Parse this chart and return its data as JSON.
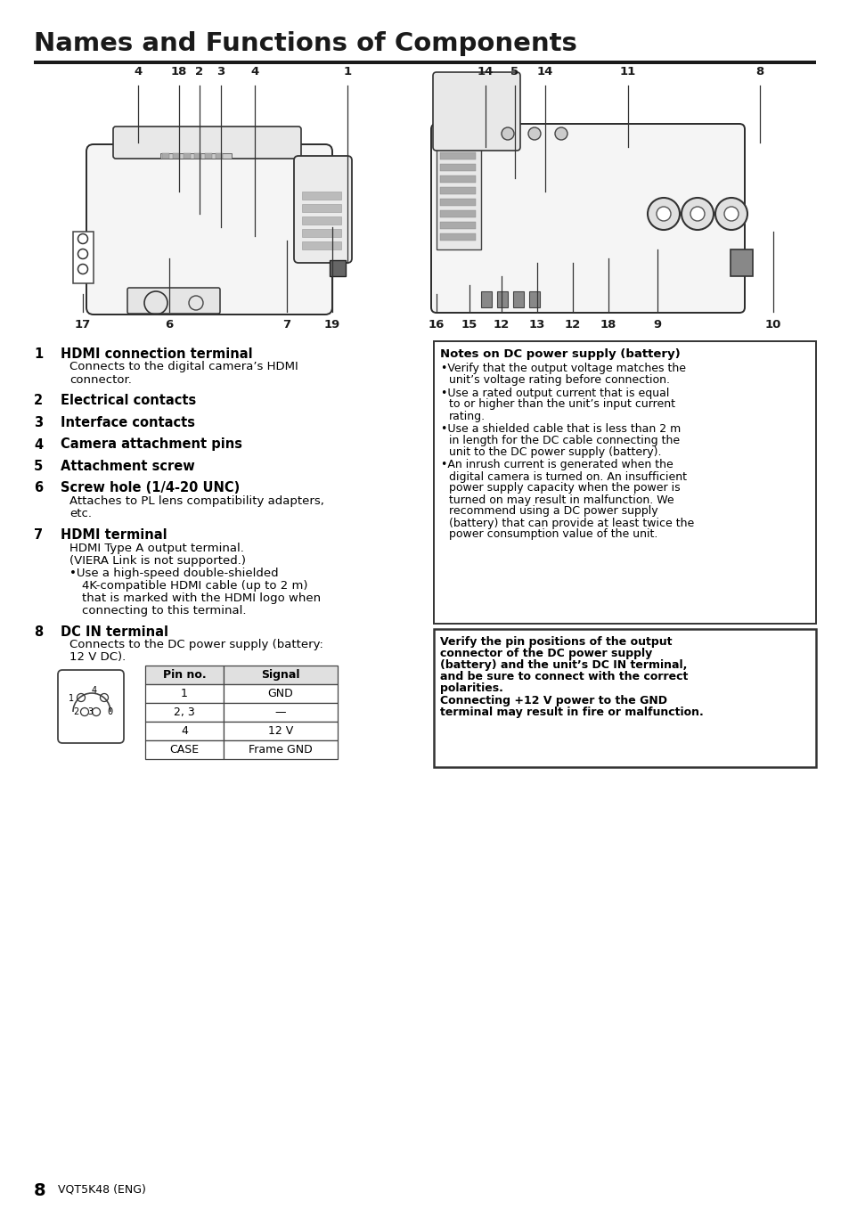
{
  "title": "Names and Functions of Components",
  "bg_color": "#ffffff",
  "text_color": "#000000",
  "page_number": "8",
  "page_code": "VQT5K48 (ENG)",
  "items": [
    {
      "num": "1",
      "bold": "HDMI connection terminal",
      "body_lines": [
        "Connects to the digital camera’s HDMI",
        "connector."
      ]
    },
    {
      "num": "2",
      "bold": "Electrical contacts",
      "body_lines": []
    },
    {
      "num": "3",
      "bold": "Interface contacts",
      "body_lines": []
    },
    {
      "num": "4",
      "bold": "Camera attachment pins",
      "body_lines": []
    },
    {
      "num": "5",
      "bold": "Attachment screw",
      "body_lines": []
    },
    {
      "num": "6",
      "bold": "Screw hole (1/4-20 UNC)",
      "body_lines": [
        "Attaches to PL lens compatibility adapters,",
        "etc."
      ]
    },
    {
      "num": "7",
      "bold": "HDMI terminal",
      "body_lines": [
        "HDMI Type A output terminal.",
        "(VIERA Link is not supported.)",
        "•Use a high-speed double-shielded",
        "  4K-compatible HDMI cable (up to 2 m)",
        "  that is marked with the HDMI logo when",
        "  connecting to this terminal."
      ]
    },
    {
      "num": "8",
      "bold": "DC IN terminal",
      "body_lines": [
        "Connects to the DC power supply (battery:",
        "12 V DC)."
      ]
    }
  ],
  "notes_box_title": "Notes on DC power supply (battery)",
  "notes_bullets": [
    [
      "Verify that the output voltage matches the",
      "unit’s voltage rating before connection."
    ],
    [
      "Use a rated output current that is equal",
      "to or higher than the unit’s input current",
      "rating."
    ],
    [
      "Use a shielded cable that is less than 2 m",
      "in length for the DC cable connecting the",
      "unit to the DC power supply (battery)."
    ],
    [
      "An inrush current is generated when the",
      "digital camera is turned on. An insufficient",
      "power supply capacity when the power is",
      "turned on may result in malfunction. We",
      "recommend using a DC power supply",
      "(battery) that can provide at least twice the",
      "power consumption value of the unit."
    ]
  ],
  "warn_lines_bold": [
    "Verify the pin positions of the output",
    "connector of the DC power supply",
    "(battery) and the unit’s DC IN terminal,",
    "and be sure to connect with the correct",
    "polarities."
  ],
  "warn_lines_bold2": [
    "Connecting +12 V power to the GND",
    "terminal may result in fire or malfunction."
  ],
  "table_headers": [
    "Pin no.",
    "Signal"
  ],
  "table_rows": [
    [
      "1",
      "GND"
    ],
    [
      "2, 3",
      "—"
    ],
    [
      "4",
      "12 V"
    ],
    [
      "CASE",
      "Frame GND"
    ]
  ],
  "left_top_labels": [
    [
      "4",
      155
    ],
    [
      "18",
      201
    ],
    [
      "2",
      224
    ],
    [
      "3",
      248
    ],
    [
      "4",
      286
    ],
    [
      "1",
      390
    ]
  ],
  "left_bot_labels": [
    [
      "17",
      93
    ],
    [
      "6",
      190
    ],
    [
      "7",
      322
    ],
    [
      "19",
      373
    ]
  ],
  "right_top_labels": [
    [
      "14",
      545
    ],
    [
      "5",
      578
    ],
    [
      "14",
      612
    ],
    [
      "11",
      705
    ],
    [
      "8",
      853
    ]
  ],
  "right_bot_labels": [
    [
      "16",
      490
    ],
    [
      "15",
      527
    ],
    [
      "12",
      563
    ],
    [
      "13",
      603
    ],
    [
      "12",
      643
    ],
    [
      "18",
      683
    ],
    [
      "9",
      738
    ],
    [
      "10",
      868
    ]
  ]
}
